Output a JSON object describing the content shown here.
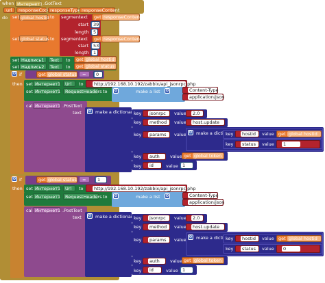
{
  "event": {
    "when": "when",
    "component": "Интернет1",
    "event": ".GotText",
    "params": [
      "url",
      "responseCode",
      "responseType",
      "responseContent"
    ],
    "do": "do"
  },
  "seg1": {
    "set": "set",
    "var": "global hostid",
    "to": "to",
    "segment": "segment",
    "text": "text",
    "get": "get",
    "getvar": "responseContent",
    "start": "start",
    "start_val": "39",
    "length": "length",
    "length_val": "5"
  },
  "seg2": {
    "set": "set",
    "var": "global status",
    "to": "to",
    "segment": "segment",
    "text": "text",
    "get": "get",
    "getvar": "responseContent",
    "start": "start",
    "start_val": "53",
    "length": "length",
    "length_val": "1"
  },
  "labels": [
    {
      "set": "set",
      "comp": "Надпись1",
      "prop": "Text",
      "to": "to",
      "get": "get",
      "var": "global hostid"
    },
    {
      "set": "set",
      "comp": "Надпись2",
      "prop": "Text",
      "to": "to",
      "get": "get",
      "var": "global status"
    }
  ],
  "if1": {
    "if": "if",
    "then": "then",
    "get": "get",
    "var": "global status",
    "op": "=",
    "val": "0"
  },
  "if2": {
    "if": "if",
    "then": "then",
    "get": "get",
    "var": "global status",
    "op": "=",
    "val": "1"
  },
  "block": {
    "set": "set",
    "comp": "Интернет1",
    "url_prop": "Url",
    "to": "to",
    "url": "http://192.168.10.192/zabbix/api_jsonrpc.php",
    "headers_prop": "RequestHeaders",
    "make_list": "make a list",
    "content_type": "Content-Type",
    "app_json": "application/json",
    "call": "call",
    "post": ".PostText",
    "text": "text",
    "make_dict": "make a dictionary",
    "key": "key",
    "value": "value",
    "k_jsonrpc": "jsonrpc",
    "v_jsonrpc": "2.0",
    "k_method": "method",
    "v_method": "host.update",
    "k_params": "params",
    "k_hostid": "hostid",
    "get": "get",
    "v_hostid": "global hostid",
    "k_status": "status",
    "k_auth": "auth",
    "v_auth": "global token",
    "k_id": "id",
    "v_id": "1"
  },
  "status_vals": [
    "1",
    "0"
  ]
}
